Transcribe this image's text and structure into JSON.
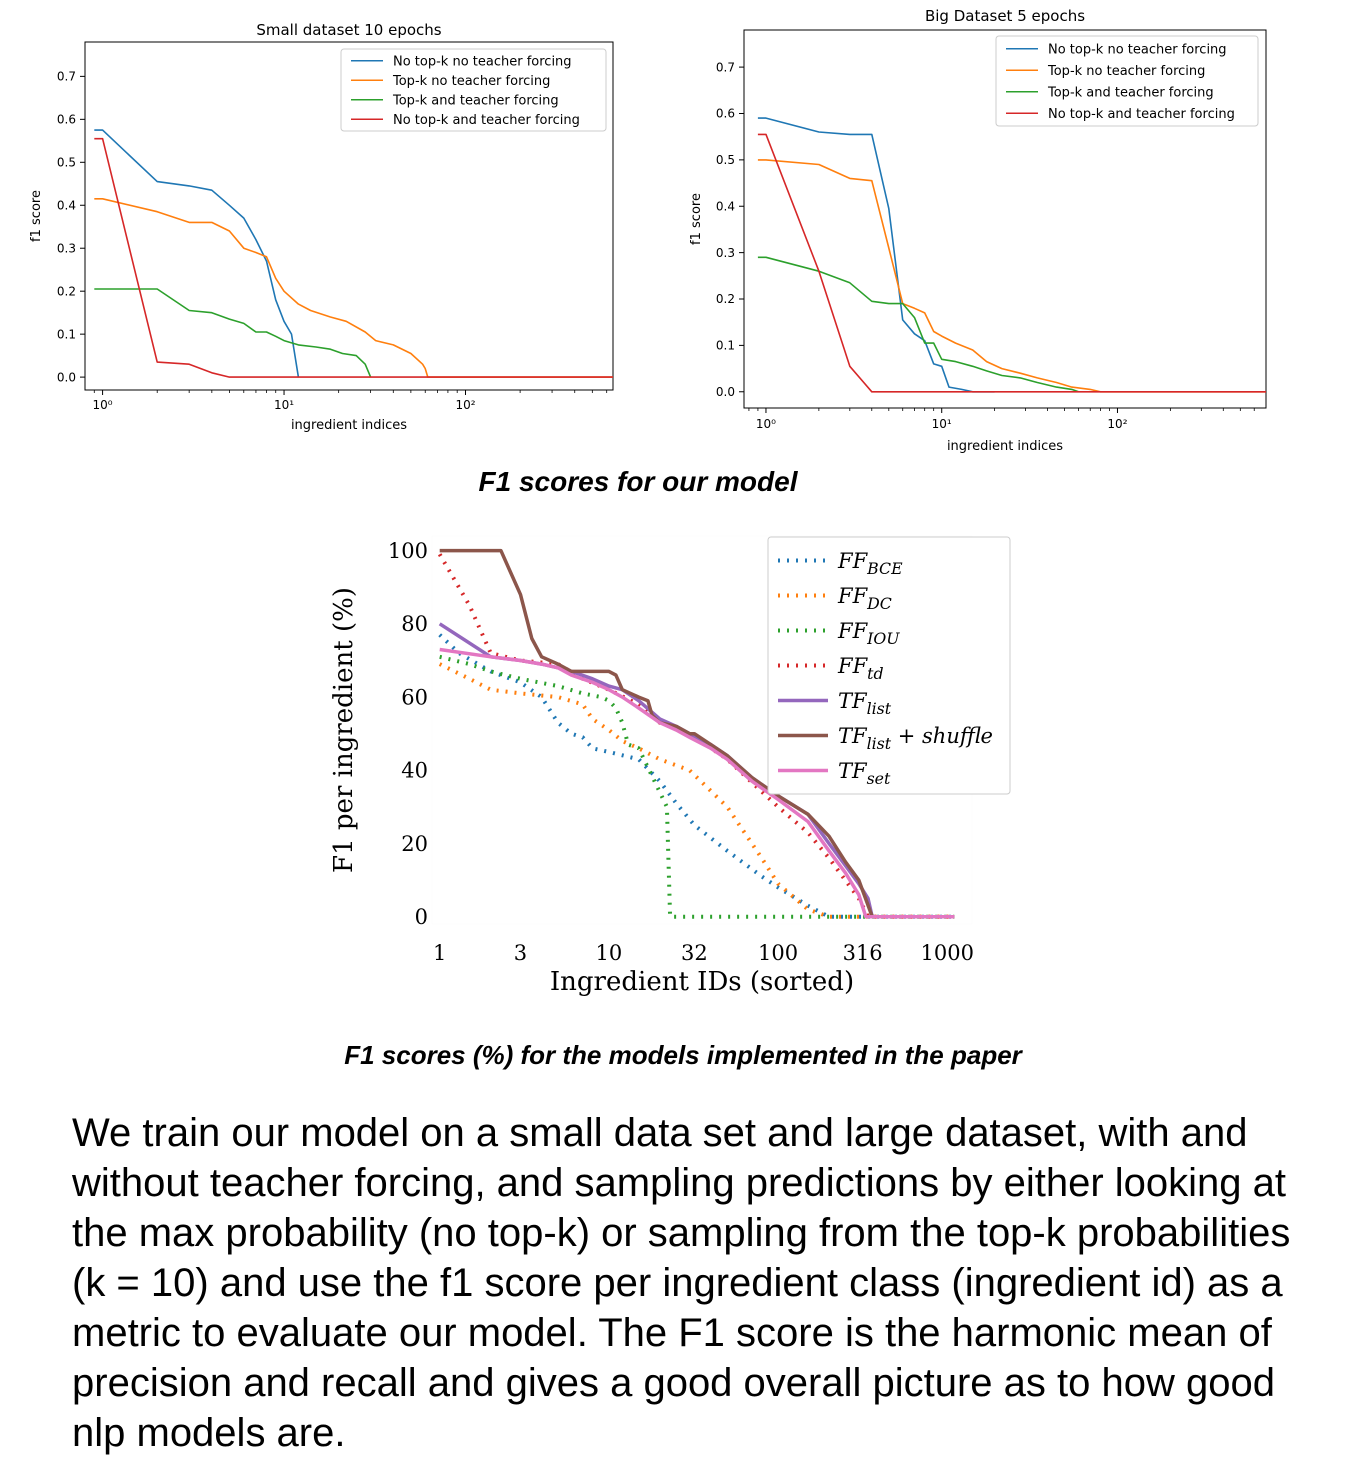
{
  "captions": {
    "our_model": "F1 scores for our model",
    "paper_models": "F1 scores (%)  for the models implemented in the paper"
  },
  "body_text": "We train our model on a small data set and large dataset, with and without teacher forcing, and sampling predictions by either looking at the max probability (no top-k) or sampling from the top-k probabilities (k = 10) and use the f1 score per ingredient class (ingredient id) as a metric to evaluate our model. The F1 score is the harmonic mean of precision and recall and gives a good overall picture as to how good nlp models are.",
  "chart_data": [
    {
      "type": "line",
      "title": "Small dataset 10 epochs",
      "xlabel": "ingredient indices",
      "ylabel": "f1 score",
      "xscale": "log",
      "xlim": [
        0.8,
        650
      ],
      "ylim": [
        -0.03,
        0.78
      ],
      "xticks": [
        {
          "value": 1,
          "label": "10⁰"
        },
        {
          "value": 10,
          "label": "10¹"
        },
        {
          "value": 100,
          "label": "10²"
        }
      ],
      "yticks": [
        {
          "value": 0.0,
          "label": "0.0"
        },
        {
          "value": 0.1,
          "label": "0.1"
        },
        {
          "value": 0.2,
          "label": "0.2"
        },
        {
          "value": 0.3,
          "label": "0.3"
        },
        {
          "value": 0.4,
          "label": "0.4"
        },
        {
          "value": 0.5,
          "label": "0.5"
        },
        {
          "value": 0.6,
          "label": "0.6"
        },
        {
          "value": 0.7,
          "label": "0.7"
        }
      ],
      "legend_position": "upper right",
      "grid": false,
      "series": [
        {
          "name": "No top-k no teacher forcing",
          "color": "#1f77b4",
          "x": [
            0.9,
            1,
            2,
            3,
            4,
            5,
            6,
            7,
            8,
            9,
            10,
            11,
            12
          ],
          "y": [
            0.575,
            0.575,
            0.455,
            0.445,
            0.435,
            0.4,
            0.37,
            0.32,
            0.27,
            0.18,
            0.13,
            0.1,
            0.0
          ]
        },
        {
          "name": "Top-k no teacher forcing",
          "color": "#ff7f0e",
          "x": [
            0.9,
            1,
            2,
            3,
            4,
            5,
            6,
            7,
            8,
            9,
            10,
            12,
            14,
            18,
            22,
            28,
            32,
            40,
            50,
            58,
            60,
            62,
            650
          ],
          "y": [
            0.415,
            0.415,
            0.385,
            0.36,
            0.36,
            0.34,
            0.3,
            0.29,
            0.28,
            0.23,
            0.2,
            0.17,
            0.155,
            0.14,
            0.13,
            0.105,
            0.085,
            0.075,
            0.055,
            0.03,
            0.02,
            0.0,
            0.0
          ]
        },
        {
          "name": "Top-k and teacher forcing",
          "color": "#2ca02c",
          "x": [
            0.9,
            1,
            2,
            3,
            4,
            5,
            6,
            7,
            8,
            9,
            10,
            12,
            15,
            18,
            21,
            25,
            28,
            30
          ],
          "y": [
            0.205,
            0.205,
            0.205,
            0.155,
            0.15,
            0.135,
            0.125,
            0.105,
            0.105,
            0.095,
            0.085,
            0.075,
            0.07,
            0.065,
            0.055,
            0.05,
            0.03,
            0.0
          ]
        },
        {
          "name": "No top-k and teacher forcing",
          "color": "#d62728",
          "x": [
            0.9,
            1,
            2,
            3,
            4,
            5,
            650
          ],
          "y": [
            0.555,
            0.555,
            0.035,
            0.03,
            0.01,
            0.0,
            0.0
          ]
        }
      ]
    },
    {
      "type": "line",
      "title": "Big Dataset 5 epochs",
      "xlabel": "ingredient indices",
      "ylabel": "f1 score",
      "xscale": "log",
      "xlim": [
        0.75,
        700
      ],
      "ylim": [
        -0.035,
        0.78
      ],
      "xticks": [
        {
          "value": 1,
          "label": "10⁰"
        },
        {
          "value": 10,
          "label": "10¹"
        },
        {
          "value": 100,
          "label": "10²"
        }
      ],
      "yticks": [
        {
          "value": 0.0,
          "label": "0.0"
        },
        {
          "value": 0.1,
          "label": "0.1"
        },
        {
          "value": 0.2,
          "label": "0.2"
        },
        {
          "value": 0.3,
          "label": "0.3"
        },
        {
          "value": 0.4,
          "label": "0.4"
        },
        {
          "value": 0.5,
          "label": "0.5"
        },
        {
          "value": 0.6,
          "label": "0.6"
        },
        {
          "value": 0.7,
          "label": "0.7"
        }
      ],
      "legend_position": "upper right",
      "grid": false,
      "series": [
        {
          "name": "No top-k no teacher forcing",
          "color": "#1f77b4",
          "x": [
            0.9,
            1,
            2,
            3,
            4,
            5,
            6,
            7,
            8,
            9,
            10,
            11,
            13,
            15,
            20
          ],
          "y": [
            0.59,
            0.59,
            0.56,
            0.555,
            0.555,
            0.395,
            0.155,
            0.125,
            0.11,
            0.06,
            0.055,
            0.01,
            0.005,
            0.0,
            0.0
          ]
        },
        {
          "name": "Top-k no teacher forcing",
          "color": "#ff7f0e",
          "x": [
            0.9,
            1,
            2,
            3,
            4,
            5,
            6,
            7,
            8,
            9,
            10,
            12,
            15,
            18,
            22,
            28,
            35,
            45,
            55,
            70,
            80,
            700
          ],
          "y": [
            0.5,
            0.5,
            0.49,
            0.46,
            0.455,
            0.31,
            0.19,
            0.18,
            0.17,
            0.13,
            0.12,
            0.105,
            0.09,
            0.065,
            0.05,
            0.04,
            0.03,
            0.02,
            0.01,
            0.005,
            0.0,
            0.0
          ]
        },
        {
          "name": "Top-k and teacher forcing",
          "color": "#2ca02c",
          "x": [
            0.9,
            1,
            2,
            3,
            4,
            5,
            6,
            7,
            8,
            9,
            10,
            12,
            15,
            18,
            22,
            28,
            35,
            45,
            55,
            60
          ],
          "y": [
            0.29,
            0.29,
            0.26,
            0.235,
            0.195,
            0.19,
            0.19,
            0.16,
            0.105,
            0.105,
            0.07,
            0.065,
            0.055,
            0.045,
            0.035,
            0.03,
            0.02,
            0.01,
            0.005,
            0.0
          ]
        },
        {
          "name": "No top-k and teacher forcing",
          "color": "#d62728",
          "x": [
            0.9,
            1,
            2,
            3,
            4,
            700
          ],
          "y": [
            0.555,
            0.555,
            0.26,
            0.055,
            0.0,
            0.0
          ]
        }
      ]
    },
    {
      "type": "line",
      "title": "",
      "xlabel": "Ingredient IDs (sorted)",
      "ylabel": "F1 per ingredient (%)",
      "xscale": "log",
      "xlim": [
        0.9,
        1400
      ],
      "ylim": [
        -2,
        104
      ],
      "xticks": [
        {
          "value": 1,
          "label": "1"
        },
        {
          "value": 3,
          "label": "3"
        },
        {
          "value": 10,
          "label": "10"
        },
        {
          "value": 32,
          "label": "32"
        },
        {
          "value": 100,
          "label": "100"
        },
        {
          "value": 316,
          "label": "316"
        },
        {
          "value": 1000,
          "label": "1000"
        }
      ],
      "yticks": [
        {
          "value": 0,
          "label": "0"
        },
        {
          "value": 20,
          "label": "20"
        },
        {
          "value": 40,
          "label": "40"
        },
        {
          "value": 60,
          "label": "60"
        },
        {
          "value": 80,
          "label": "80"
        },
        {
          "value": 100,
          "label": "100"
        }
      ],
      "legend_position": "upper right",
      "grid": false,
      "series": [
        {
          "name": "FF_BCE",
          "legend_main": "FF",
          "legend_sub": "BCE",
          "legend_suffix": "",
          "color": "#1f77b4",
          "style": "dotted",
          "x": [
            1,
            1.3,
            2,
            3,
            4,
            5,
            6,
            7,
            8,
            10,
            15,
            20,
            25,
            32,
            50,
            80,
            100,
            150,
            200,
            340,
            1100
          ],
          "y": [
            77,
            72,
            67,
            64,
            60,
            53,
            50,
            49,
            46,
            45,
            43,
            37,
            31,
            25,
            18,
            11,
            8,
            3,
            0,
            0,
            0
          ]
        },
        {
          "name": "FF_DC",
          "legend_main": "FF",
          "legend_sub": "DC",
          "legend_suffix": "",
          "color": "#ff7f0e",
          "style": "dotted",
          "x": [
            1,
            1.5,
            2,
            3,
            5,
            7,
            8,
            10,
            12,
            15,
            20,
            30,
            50,
            80,
            100,
            150,
            200,
            340,
            1100
          ],
          "y": [
            69,
            65,
            62,
            61,
            60,
            58,
            54,
            51,
            48,
            46,
            43,
            40,
            30,
            16,
            9,
            2,
            0,
            0,
            0
          ]
        },
        {
          "name": "FF_IOU",
          "legend_main": "FF",
          "legend_sub": "IOU",
          "legend_suffix": "",
          "color": "#2ca02c",
          "style": "dotted",
          "x": [
            1,
            1.5,
            2,
            3,
            5,
            7,
            9,
            10,
            11,
            12,
            13,
            15,
            20,
            22,
            23,
            1100
          ],
          "y": [
            71,
            69,
            67,
            65,
            63,
            61,
            60,
            59,
            57,
            53,
            47,
            46,
            34,
            30,
            0,
            0
          ]
        },
        {
          "name": "FF_td",
          "legend_main": "FF",
          "legend_sub": "td",
          "legend_suffix": "",
          "color": "#d62728",
          "style": "dotted",
          "x": [
            1,
            1.5,
            2,
            3,
            5,
            7,
            10,
            15,
            20,
            30,
            50,
            100,
            150,
            200,
            300,
            340,
            1100
          ],
          "y": [
            99,
            85,
            72,
            70,
            69,
            65,
            62,
            58,
            53,
            50,
            43,
            30,
            23,
            16,
            5,
            0,
            0
          ]
        },
        {
          "name": "TF_list",
          "legend_main": "TF",
          "legend_sub": "list",
          "legend_suffix": "",
          "color": "#9467bd",
          "style": "solid",
          "x": [
            1,
            2,
            3,
            4,
            5,
            6,
            8,
            10,
            12,
            15,
            20,
            25,
            30,
            40,
            50,
            70,
            100,
            150,
            200,
            250,
            300,
            340,
            360,
            1100
          ],
          "y": [
            80,
            71,
            70,
            69,
            68,
            67,
            65,
            63,
            62,
            59,
            54,
            52,
            50,
            47,
            44,
            38,
            33,
            28,
            20,
            14,
            9,
            5,
            0,
            0
          ]
        },
        {
          "name": "TF_list + shuffle",
          "legend_main": "TF",
          "legend_sub": "list",
          "legend_suffix": " + shuffle",
          "color": "#8c564b",
          "style": "solid",
          "x": [
            1,
            2,
            2.3,
            3,
            3.5,
            4,
            5,
            6,
            8,
            10,
            11,
            12,
            15,
            17,
            18,
            20,
            25,
            30,
            32,
            40,
            50,
            70,
            100,
            150,
            200,
            250,
            300,
            360,
            1100
          ],
          "y": [
            100,
            100,
            100,
            88,
            76,
            71,
            69,
            67,
            67,
            67,
            66,
            62,
            60,
            59,
            55,
            53,
            52,
            50,
            50,
            47,
            44,
            38,
            33,
            28,
            22,
            15,
            10,
            0,
            0
          ]
        },
        {
          "name": "TF_set",
          "legend_main": "TF",
          "legend_sub": "set",
          "legend_suffix": "",
          "color": "#e377c2",
          "style": "solid",
          "x": [
            1,
            2,
            3,
            4,
            5,
            6,
            8,
            10,
            12,
            15,
            20,
            25,
            30,
            40,
            50,
            70,
            100,
            150,
            200,
            250,
            300,
            330,
            1100
          ],
          "y": [
            73,
            71,
            70,
            69,
            68,
            66,
            64,
            62,
            60,
            57,
            53,
            51,
            49,
            46,
            43,
            37,
            32,
            26,
            18,
            12,
            6,
            0,
            0
          ]
        }
      ]
    }
  ]
}
